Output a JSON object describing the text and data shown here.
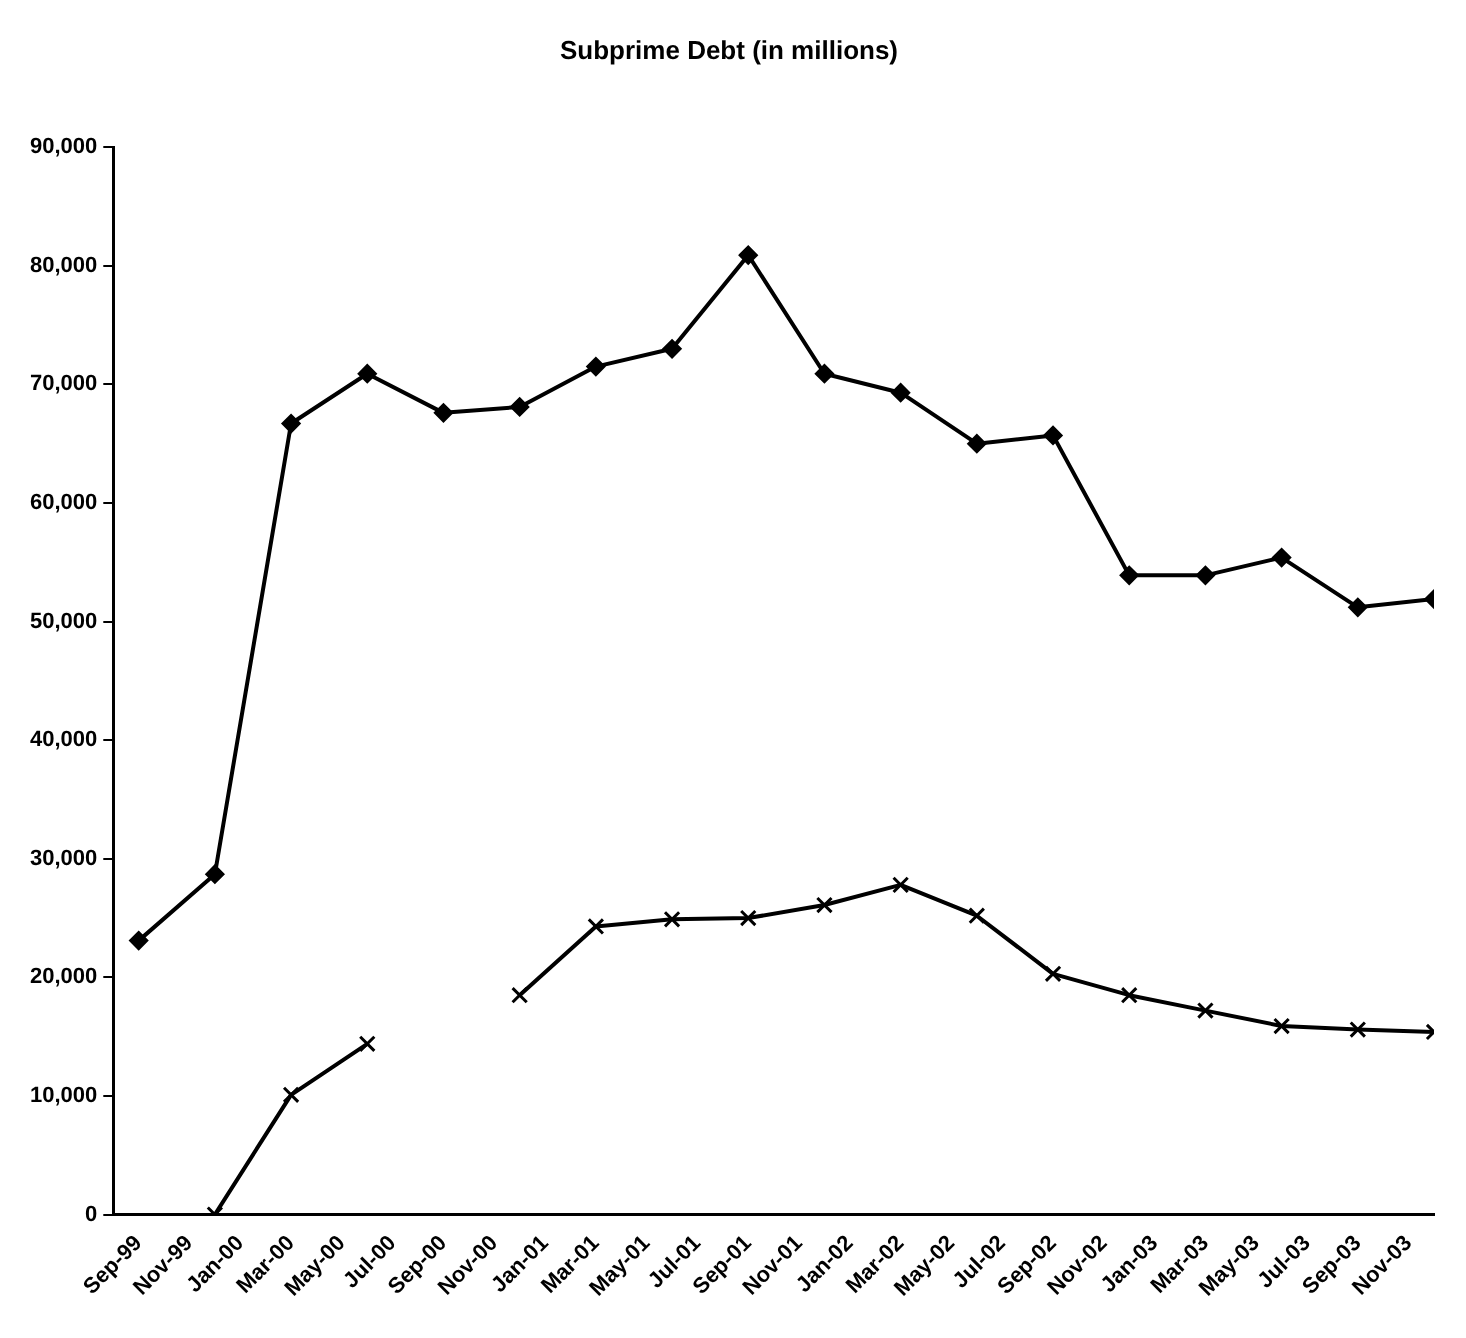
{
  "chart_data": {
    "type": "line",
    "title": "Subprime Debt (in millions)",
    "x": [
      "1999-09",
      "1999-12",
      "2000-03",
      "2000-06",
      "2000-09",
      "2000-12",
      "2001-03",
      "2001-06",
      "2001-09",
      "2001-12",
      "2002-03",
      "2002-06",
      "2002-09",
      "2002-12",
      "2003-03",
      "2003-06",
      "2003-09",
      "2003-12"
    ],
    "series": [
      {
        "color": "#000000",
        "marker": "diamond",
        "values": [
          23100,
          28700,
          66700,
          70900,
          67600,
          68100,
          71500,
          73000,
          80900,
          70900,
          69300,
          65000,
          65700,
          53900,
          53900,
          55400,
          51200,
          51900
        ]
      },
      {
        "color": "#000000",
        "marker": "cross",
        "values": [
          null,
          0,
          10100,
          14400,
          null,
          18500,
          24300,
          24900,
          25000,
          26100,
          27800,
          25200,
          20300,
          18500,
          17200,
          15900,
          15600,
          15400
        ]
      }
    ],
    "xlim": [
      "1999-08",
      "2003-12"
    ],
    "xticks": [
      {
        "value": "1999-09",
        "label": "Sep-99"
      },
      {
        "value": "1999-11",
        "label": "Nov-99"
      },
      {
        "value": "2000-01",
        "label": "Jan-00"
      },
      {
        "value": "2000-03",
        "label": "Mar-00"
      },
      {
        "value": "2000-05",
        "label": "May-00"
      },
      {
        "value": "2000-07",
        "label": "Jul-00"
      },
      {
        "value": "2000-09",
        "label": "Sep-00"
      },
      {
        "value": "2000-11",
        "label": "Nov-00"
      },
      {
        "value": "2001-01",
        "label": "Jan-01"
      },
      {
        "value": "2001-03",
        "label": "Mar-01"
      },
      {
        "value": "2001-05",
        "label": "May-01"
      },
      {
        "value": "2001-07",
        "label": "Jul-01"
      },
      {
        "value": "2001-09",
        "label": "Sep-01"
      },
      {
        "value": "2001-11",
        "label": "Nov-01"
      },
      {
        "value": "2002-01",
        "label": "Jan-02"
      },
      {
        "value": "2002-03",
        "label": "Mar-02"
      },
      {
        "value": "2002-05",
        "label": "May-02"
      },
      {
        "value": "2002-07",
        "label": "Jul-02"
      },
      {
        "value": "2002-09",
        "label": "Sep-02"
      },
      {
        "value": "2002-11",
        "label": "Nov-02"
      },
      {
        "value": "2003-01",
        "label": "Jan-03"
      },
      {
        "value": "2003-03",
        "label": "Mar-03"
      },
      {
        "value": "2003-05",
        "label": "May-03"
      },
      {
        "value": "2003-07",
        "label": "Jul-03"
      },
      {
        "value": "2003-09",
        "label": "Sep-03"
      },
      {
        "value": "2003-11",
        "label": "Nov-03"
      }
    ],
    "ylim": [
      0,
      90000
    ],
    "yticks": [
      {
        "value": 0,
        "label": "0"
      },
      {
        "value": 10000,
        "label": "10,000"
      },
      {
        "value": 20000,
        "label": "20,000"
      },
      {
        "value": 30000,
        "label": "30,000"
      },
      {
        "value": 40000,
        "label": "40,000"
      },
      {
        "value": 50000,
        "label": "50,000"
      },
      {
        "value": 60000,
        "label": "60,000"
      },
      {
        "value": 70000,
        "label": "70,000"
      },
      {
        "value": 80000,
        "label": "80,000"
      },
      {
        "value": 90000,
        "label": "90,000"
      }
    ],
    "grid": false,
    "legend": false,
    "line_style": "solid"
  }
}
